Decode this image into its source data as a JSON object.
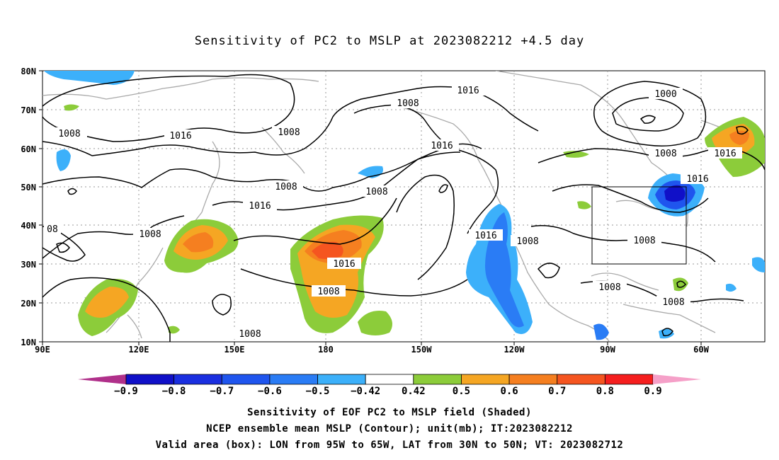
{
  "title": "Sensitivity of PC2 to MSLP at 2023082212 +4.5 day",
  "lat_labels": [
    "80N",
    "70N",
    "60N",
    "50N",
    "40N",
    "30N",
    "20N",
    "10N"
  ],
  "lon_labels": [
    "90E",
    "120E",
    "150E",
    "180",
    "150W",
    "120W",
    "90W",
    "60W"
  ],
  "contour_labels": [
    "1016",
    "1008",
    "1008",
    "1016",
    "1008",
    "1016",
    "1000",
    "1008",
    "1016",
    "1016",
    "08",
    "1008",
    "1016",
    "1016",
    "1008",
    "1016",
    "1008",
    "1008",
    "1008",
    "1008",
    "1008"
  ],
  "colorbar": {
    "labels": [
      "-0.9",
      "-0.8",
      "-0.7",
      "-0.6",
      "-0.5",
      "-0.42",
      "0.42",
      "0.5",
      "0.6",
      "0.7",
      "0.8",
      "0.9"
    ],
    "colors": [
      "#1010c8",
      "#1a2fe0",
      "#1f55ee",
      "#2a7cf5",
      "#3cb0fa",
      "#ffffff",
      "#8ccc3a",
      "#f5a623",
      "#f57f20",
      "#f55520",
      "#f51e1e"
    ],
    "low_arrow_color": "#b0308a",
    "high_arrow_color": "#f5a0c8"
  },
  "captions": [
    "Sensitivity of EOF PC2 to MSLP field (Shaded)",
    "NCEP ensemble mean MSLP (Contour); unit(mb); IT:2023082212",
    "Valid area (box): LON from 95W to 65W, LAT from 30N to 50N; VT: 2023082712"
  ]
}
